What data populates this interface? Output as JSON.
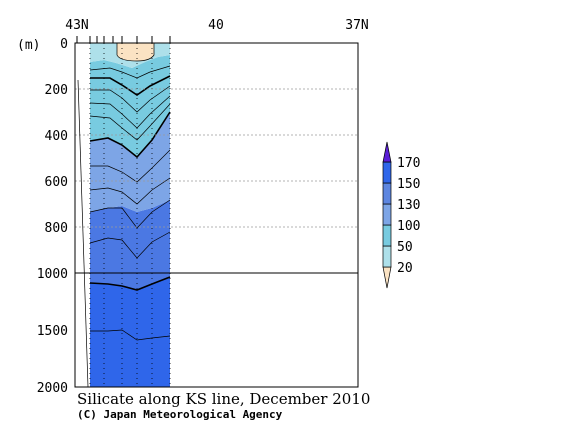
{
  "chart_data": {
    "type": "contour-section",
    "title": "Silicate along KS line, December 2010",
    "credit": "(C) Japan Meteorological Agency",
    "y_unit_label": "(m)",
    "x_ticks": [
      "43N",
      "40",
      "37N"
    ],
    "y_ticks_upper": [
      0,
      200,
      400,
      600,
      800,
      1000
    ],
    "y_ticks_lower": [
      1500,
      2000
    ],
    "y_range": [
      0,
      2000
    ],
    "y_axis_break": 1000,
    "colorbar": {
      "labels": [
        "170",
        "150",
        "130",
        "100",
        "50",
        "20"
      ],
      "levels": [
        {
          "lower": 20,
          "upper": null,
          "color": "#fbe3c3"
        },
        {
          "lower": 20,
          "upper": 50,
          "color": "#aee0ea"
        },
        {
          "lower": 50,
          "upper": 100,
          "color": "#78cbe0"
        },
        {
          "lower": 100,
          "upper": 130,
          "color": "#7da5e6"
        },
        {
          "lower": 130,
          "upper": 150,
          "color": "#5d86e0"
        },
        {
          "lower": 150,
          "upper": 170,
          "color": "#2f66ea"
        },
        {
          "lower": 170,
          "upper": null,
          "color": "#5a1ed6"
        }
      ]
    }
  }
}
